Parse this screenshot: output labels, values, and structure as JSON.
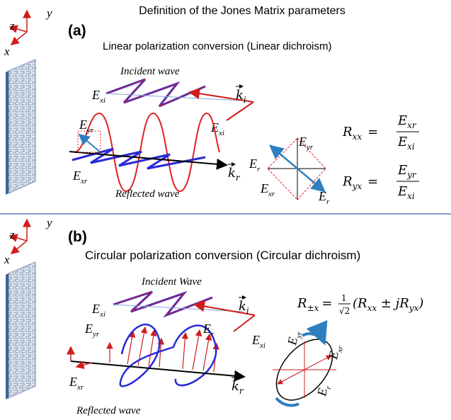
{
  "title": "Definition of the Jones Matrix parameters",
  "panels": [
    {
      "label": "(a)",
      "subtitle": "Linear polarization conversion (Linear dichroism)",
      "axes": {
        "x": "x",
        "y": "y",
        "z": "z"
      },
      "incident_label": "Incident wave",
      "reflected_label": "Reflected wave",
      "field_labels": [
        {
          "base": "E",
          "sub": "xi"
        },
        {
          "base": "k",
          "sub": "i"
        },
        {
          "base": "E",
          "sub": "xi"
        },
        {
          "base": "E",
          "sub": "yr"
        },
        {
          "base": "E",
          "sub": "xr"
        },
        {
          "base": "k",
          "sub": "r"
        },
        {
          "base": "E",
          "sub": "r"
        },
        {
          "base": "E",
          "sub": "yr"
        },
        {
          "base": "E",
          "sub": "xr"
        },
        {
          "base": "E",
          "sub": "r"
        }
      ],
      "equations": [
        {
          "lhs": {
            "base": "R",
            "sub": "xx"
          },
          "equals": "=",
          "numerator": {
            "base": "E",
            "sub": "xr"
          },
          "denominator": {
            "base": "E",
            "sub": "xi"
          }
        },
        {
          "lhs": {
            "base": "R",
            "sub": "yx"
          },
          "equals": "=",
          "numerator": {
            "base": "E",
            "sub": "yr"
          },
          "denominator": {
            "base": "E",
            "sub": "xi"
          }
        }
      ]
    },
    {
      "label": "(b)",
      "subtitle": "Circular polarization conversion (Circular dichroism)",
      "axes": {
        "x": "x",
        "y": "y",
        "z": "z"
      },
      "incident_label": "Incident Wave",
      "reflected_label": "Reflected wave",
      "field_labels": [
        {
          "base": "E",
          "sub": "xi"
        },
        {
          "base": "k",
          "sub": "i"
        },
        {
          "base": "E",
          "sub": "xi"
        },
        {
          "base": "E",
          "sub": "yr"
        },
        {
          "base": "E",
          "sub": "r"
        },
        {
          "base": "E",
          "sub": "xr"
        },
        {
          "base": "k",
          "sub": "r"
        },
        {
          "base": "E",
          "sub": "yr"
        },
        {
          "base": "E",
          "sub": "xr"
        },
        {
          "base": "E",
          "sub": "r"
        }
      ],
      "equation": {
        "lhs": {
          "base": "R",
          "sub": "±x"
        },
        "equals": "=",
        "numerator": "1",
        "denominator": "√2",
        "terms": [
          {
            "text": "(R",
            "sub": "xx"
          },
          {
            "text": " ± jR",
            "sub": "yx"
          },
          {
            "text": ")"
          }
        ]
      }
    }
  ]
}
